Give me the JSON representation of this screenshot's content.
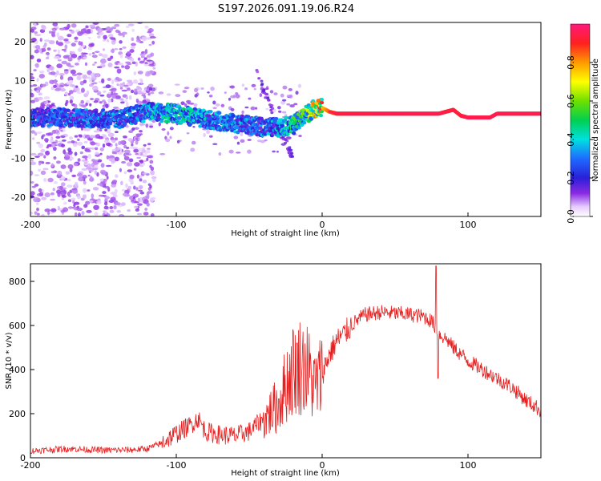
{
  "title": "S197.2026.091.19.06.R24",
  "chart_data": [
    {
      "type": "heatmap",
      "title": "S197.2026.091.19.06.R24",
      "xlabel": "Height of straight line (km)",
      "ylabel": "Frequency (Hz)",
      "xlim": [
        -200,
        150
      ],
      "ylim": [
        -25,
        25
      ],
      "xticks": [
        -200,
        -100,
        0,
        100
      ],
      "xtick_labels": [
        "-200",
        "-100",
        "0",
        "100"
      ],
      "yticks": [
        -20,
        -10,
        0,
        10,
        20
      ],
      "ytick_labels": [
        "-20",
        "-10",
        "0",
        "10",
        "20"
      ],
      "colorbar": {
        "label": "Normalized spectral amplitude",
        "range": [
          0,
          1
        ],
        "ticks": [
          0.0,
          0.2,
          0.4,
          0.6,
          0.8
        ],
        "tick_labels": [
          "0.0",
          "0.2",
          "0.4",
          "0.6",
          "0.8"
        ]
      },
      "carrier_track": {
        "x": [
          -200,
          -170,
          -140,
          -120,
          -100,
          -80,
          -60,
          -40,
          -30,
          -20,
          -10,
          -5,
          0,
          5,
          10,
          40,
          80,
          90,
          95,
          100,
          115,
          120,
          150
        ],
        "y": [
          0.5,
          0.5,
          0.0,
          2.0,
          1.5,
          0.0,
          -1.0,
          -2.0,
          -2.0,
          -1.5,
          1.5,
          3.0,
          3.0,
          2.0,
          1.5,
          1.5,
          1.5,
          2.5,
          1.0,
          0.5,
          0.5,
          1.5,
          1.5
        ],
        "amplitude": [
          0.25,
          0.3,
          0.3,
          0.35,
          0.4,
          0.35,
          0.3,
          0.3,
          0.35,
          0.45,
          0.55,
          0.65,
          0.75,
          0.85,
          0.9,
          0.95,
          0.95,
          0.9,
          0.9,
          0.95,
          0.95,
          0.95,
          0.95
        ]
      }
    },
    {
      "type": "line",
      "xlabel": "Height of straight line (km)",
      "ylabel": "SNR (10 * v/v)",
      "xlim": [
        -200,
        150
      ],
      "ylim": [
        0,
        880
      ],
      "xticks": [
        -200,
        -100,
        0,
        100
      ],
      "xtick_labels": [
        "-200",
        "-100",
        "0",
        "100"
      ],
      "yticks": [
        0,
        200,
        400,
        600,
        800
      ],
      "ytick_labels": [
        "0",
        "200",
        "400",
        "600",
        "800"
      ],
      "series": [
        {
          "name": "SNR",
          "color": "#e62020",
          "x": [
            -200,
            -175,
            -150,
            -130,
            -120,
            -110,
            -100,
            -90,
            -85,
            -80,
            -70,
            -60,
            -50,
            -40,
            -35,
            -30,
            -25,
            -20,
            -15,
            -10,
            -5,
            0,
            5,
            10,
            15,
            20,
            25,
            30,
            40,
            50,
            60,
            70,
            75,
            78,
            80,
            85,
            90,
            100,
            110,
            120,
            130,
            140,
            150
          ],
          "y": [
            25,
            35,
            28,
            30,
            35,
            60,
            100,
            140,
            170,
            110,
            95,
            90,
            110,
            170,
            210,
            240,
            330,
            400,
            420,
            400,
            320,
            380,
            470,
            530,
            560,
            600,
            630,
            650,
            660,
            655,
            650,
            640,
            620,
            590,
            560,
            540,
            500,
            440,
            400,
            360,
            320,
            260,
            215
          ]
        }
      ]
    }
  ]
}
